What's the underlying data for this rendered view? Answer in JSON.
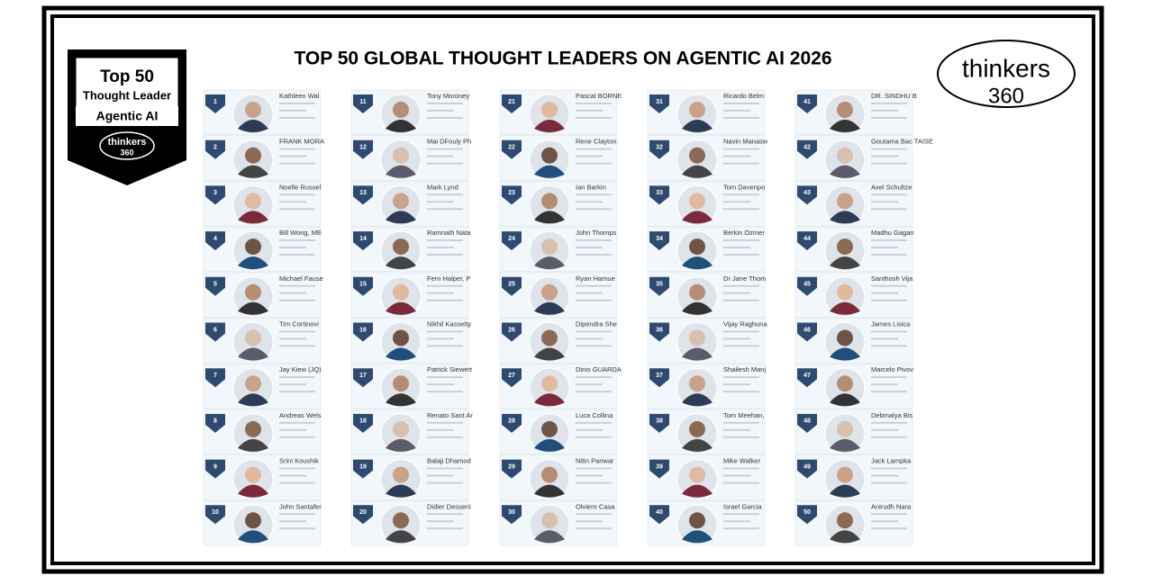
{
  "title": "TOP 50 GLOBAL THOUGHT LEADERS ON AGENTIC AI 2026",
  "badge": {
    "top": "Top 50",
    "leader": "Thought Leader",
    "topic": "Agentic AI",
    "brand": "thinkers",
    "brand_num": "360"
  },
  "logo": {
    "brand": "thinkers",
    "brand_num": "360"
  },
  "leaders": [
    {
      "rank": 1,
      "name": "Kathleen Wal"
    },
    {
      "rank": 2,
      "name": "FRANK MORA"
    },
    {
      "rank": 3,
      "name": "Noelle Russel"
    },
    {
      "rank": 4,
      "name": "Bill Wong, ME"
    },
    {
      "rank": 5,
      "name": "Michael Fause"
    },
    {
      "rank": 6,
      "name": "Tim Cortinovi"
    },
    {
      "rank": 7,
      "name": "Jay Kiew (JQ)"
    },
    {
      "rank": 8,
      "name": "Andreas Wels"
    },
    {
      "rank": 9,
      "name": "Srini Koushik"
    },
    {
      "rank": 10,
      "name": "John Santafer"
    },
    {
      "rank": 11,
      "name": "Tony Moroney"
    },
    {
      "rank": 12,
      "name": "Mai DFouly Ph"
    },
    {
      "rank": 13,
      "name": "Mark Lynd"
    },
    {
      "rank": 14,
      "name": "Ramnath Nata"
    },
    {
      "rank": 15,
      "name": "Fern Halper, P"
    },
    {
      "rank": 16,
      "name": "Nikhil Kassetty"
    },
    {
      "rank": 17,
      "name": "Patrick Siewert"
    },
    {
      "rank": 18,
      "name": "Renato Sant Ar"
    },
    {
      "rank": 19,
      "name": "Balaji Dhamod"
    },
    {
      "rank": 20,
      "name": "Didier Desseni"
    },
    {
      "rank": 21,
      "name": "Pascal BORNE"
    },
    {
      "rank": 22,
      "name": "Rene Clayton"
    },
    {
      "rank": 23,
      "name": "Ian Barkin"
    },
    {
      "rank": 24,
      "name": "John Thomps"
    },
    {
      "rank": 25,
      "name": "Ryan Hamue"
    },
    {
      "rank": 26,
      "name": "Dipendra She"
    },
    {
      "rank": 27,
      "name": "Dinis GUARDA"
    },
    {
      "rank": 28,
      "name": "Luca Collina"
    },
    {
      "rank": 29,
      "name": "Nitin Panwar"
    },
    {
      "rank": 30,
      "name": "Olviero Casa"
    },
    {
      "rank": 31,
      "name": "Ricardo Belm"
    },
    {
      "rank": 32,
      "name": "Navin Manasw"
    },
    {
      "rank": 33,
      "name": "Tom Davenpo"
    },
    {
      "rank": 34,
      "name": "Berkin Ozmer"
    },
    {
      "rank": 35,
      "name": "Dr Jane Thom"
    },
    {
      "rank": 36,
      "name": "Vijay Raghuna"
    },
    {
      "rank": 37,
      "name": "Shailesh Manj"
    },
    {
      "rank": 38,
      "name": "Tom Meehan,"
    },
    {
      "rank": 39,
      "name": "Mike Walker"
    },
    {
      "rank": 40,
      "name": "Israel Garcia"
    },
    {
      "rank": 41,
      "name": "DR. SINDHU B"
    },
    {
      "rank": 42,
      "name": "Goutama Bac TAISE"
    },
    {
      "rank": 43,
      "name": "Axel Schultze"
    },
    {
      "rank": 44,
      "name": "Madhu Gagan"
    },
    {
      "rank": 45,
      "name": "Santhosh Vija"
    },
    {
      "rank": 46,
      "name": "James Lisica"
    },
    {
      "rank": 47,
      "name": "Marcelo Pivov"
    },
    {
      "rank": 48,
      "name": "Debmalya Bis"
    },
    {
      "rank": 49,
      "name": "Jack Lampka"
    },
    {
      "rank": 50,
      "name": "Anirudh Nara"
    }
  ]
}
